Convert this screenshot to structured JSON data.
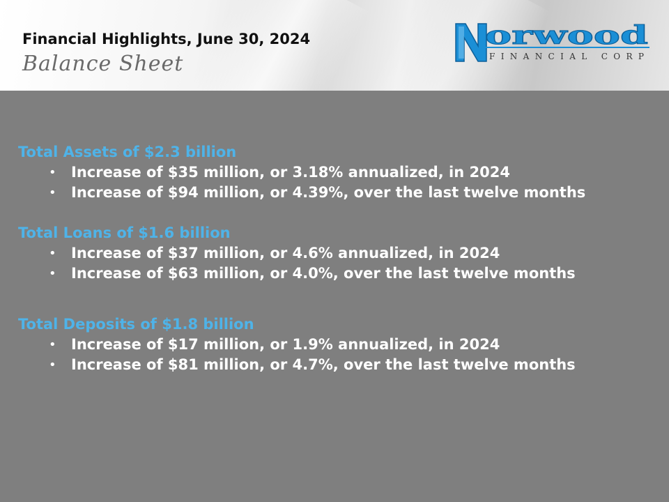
{
  "header": {
    "title": "Financial Highlights, June 30, 2024",
    "subtitle": "Balance Sheet"
  },
  "logo": {
    "name": "Norwood",
    "initial": "N",
    "rest": "orwood",
    "tagline": "FINANCIAL CORP",
    "color": "#1b8fd6"
  },
  "sections": [
    {
      "heading": "Total Assets of $2.3 billion",
      "bullets": [
        "Increase of $35 million, or 3.18% annualized, in 2024",
        "Increase of $94 million, or 4.39%, over the last twelve months"
      ]
    },
    {
      "heading": "Total Loans of $1.6 billion",
      "bullets": [
        "Increase of $37 million, or 4.6% annualized, in 2024",
        "Increase of $63 million, or 4.0%, over the last twelve months"
      ]
    },
    {
      "heading": "Total Deposits of $1.8 billion",
      "bullets": [
        "Increase of $17 million, or 1.9% annualized,  in 2024",
        "Increase of $81 million, or 4.7%, over the last twelve months"
      ]
    }
  ],
  "colors": {
    "background": "#7f7f7f",
    "heading": "#4fb3e8",
    "bullet_text": "#ffffff"
  }
}
